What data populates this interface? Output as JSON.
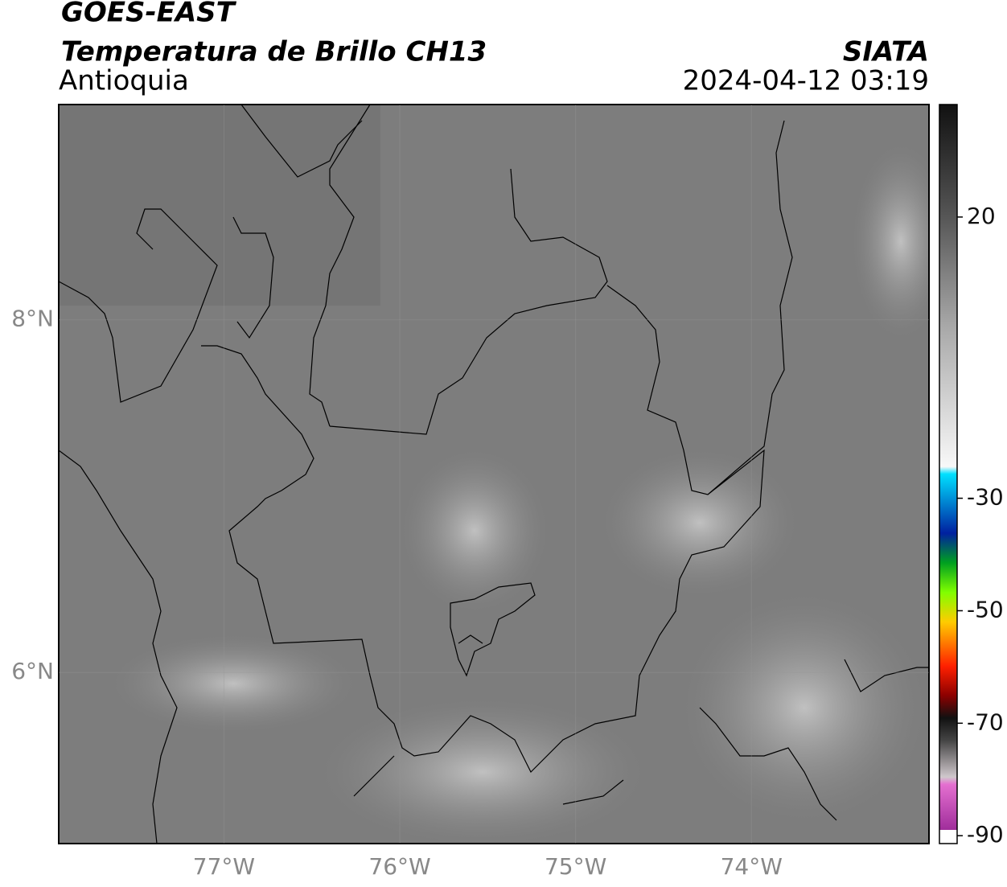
{
  "header": {
    "title": "GOES-EAST",
    "subtitle": "Temperatura de Brillo CH13",
    "region": "Antioquia",
    "source": "SIATA",
    "datetime": "2024-04-12 03:19"
  },
  "map": {
    "xlim": [
      -77.94,
      -72.99
    ],
    "ylim": [
      5.03,
      9.22
    ],
    "xticks": [
      {
        "value": -77,
        "label": "77°W"
      },
      {
        "value": -76,
        "label": "76°W"
      },
      {
        "value": -75,
        "label": "75°W"
      },
      {
        "value": -74,
        "label": "74°W"
      }
    ],
    "yticks": [
      {
        "value": 8,
        "label": "8°N"
      },
      {
        "value": 6,
        "label": "6°N"
      }
    ]
  },
  "colorbar": {
    "ylim": [
      -91.4,
      40
    ],
    "ticks": [
      20,
      -30,
      -50,
      -70,
      -90
    ]
  }
}
